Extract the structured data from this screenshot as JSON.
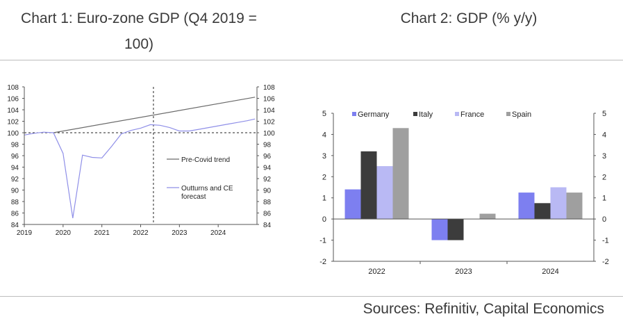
{
  "header": {
    "chart1_title_line1": "Chart 1: Euro-zone GDP (Q4 2019 =",
    "chart1_title_line2": "100)",
    "chart2_title": "Chart 2: GDP (% y/y)"
  },
  "footer": {
    "sources": "Sources: Refinitiv, Capital Economics"
  },
  "colors": {
    "trend": "#6a6a6a",
    "outturn": "#8f8fe8",
    "germany": "#7d7ff0",
    "italy": "#3c3c3c",
    "france": "#b9b9f4",
    "spain": "#9f9f9f"
  },
  "chart_data": [
    {
      "type": "line",
      "title": "Chart 1: Euro-zone GDP (Q4 2019 = 100)",
      "xlabel": "",
      "ylabel": "",
      "xlim": [
        2019.0,
        2025.0
      ],
      "ylim": [
        84,
        108
      ],
      "y_ticks": [
        84,
        86,
        88,
        90,
        92,
        94,
        96,
        98,
        100,
        102,
        104,
        106,
        108
      ],
      "x_ticks": [
        "2019",
        "2020",
        "2021",
        "2022",
        "2023",
        "2024"
      ],
      "reference_lines": [
        {
          "orientation": "horizontal",
          "value": 100,
          "style": "dashed"
        },
        {
          "orientation": "vertical",
          "value": 2022.33,
          "style": "dashed"
        }
      ],
      "series": [
        {
          "name": "Pre-Covid trend",
          "x": [
            2019.75,
            2024.95
          ],
          "values": [
            100.0,
            106.2
          ]
        },
        {
          "name": "Outturns and CE forecast",
          "x": [
            2019.0,
            2019.25,
            2019.5,
            2019.75,
            2020.0,
            2020.25,
            2020.5,
            2020.75,
            2021.0,
            2021.25,
            2021.5,
            2021.75,
            2022.0,
            2022.25,
            2022.5,
            2022.75,
            2023.0,
            2023.25,
            2023.5,
            2023.75,
            2024.0,
            2024.25,
            2024.5,
            2024.75,
            2024.95
          ],
          "values": [
            99.6,
            99.9,
            100.1,
            100.0,
            96.4,
            85.1,
            96.1,
            95.7,
            95.6,
            97.6,
            99.8,
            100.4,
            100.8,
            101.4,
            101.3,
            100.9,
            100.3,
            100.3,
            100.6,
            100.9,
            101.2,
            101.5,
            101.8,
            102.1,
            102.4
          ]
        }
      ],
      "legend": [
        {
          "name": "Pre-Covid trend",
          "label": "Pre-Covid trend"
        },
        {
          "name": "Outturns and CE forecast",
          "label_line1": "Outturns and CE",
          "label_line2": "forecast"
        }
      ]
    },
    {
      "type": "bar",
      "title": "Chart 2: GDP (% y/y)",
      "xlabel": "",
      "ylabel": "",
      "categories": [
        "2022",
        "2023",
        "2024"
      ],
      "ylim": [
        -2,
        5
      ],
      "y_ticks": [
        -2,
        -1,
        0,
        1,
        2,
        3,
        4,
        5
      ],
      "legend_position": "top",
      "series": [
        {
          "name": "Germany",
          "values": [
            1.4,
            -1.0,
            1.25
          ]
        },
        {
          "name": "Italy",
          "values": [
            3.2,
            -1.0,
            0.75
          ]
        },
        {
          "name": "France",
          "values": [
            2.5,
            0.0,
            1.5
          ]
        },
        {
          "name": "Spain",
          "values": [
            4.3,
            0.25,
            1.25
          ]
        }
      ]
    }
  ]
}
